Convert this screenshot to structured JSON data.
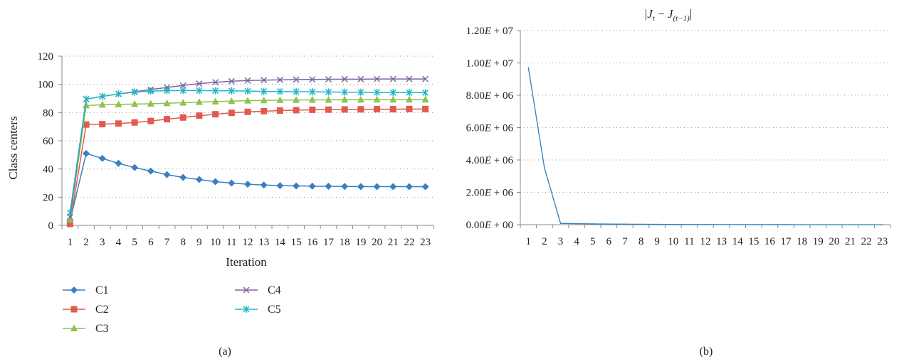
{
  "chart_data": [
    {
      "type": "line",
      "caption": "(a)",
      "ylabel": "Class centers",
      "xlabel": "Iteration",
      "ylim": [
        0,
        120
      ],
      "yticks": [
        "0",
        "20",
        "40",
        "60",
        "80",
        "100",
        "120"
      ],
      "categories": [
        "1",
        "2",
        "3",
        "4",
        "5",
        "6",
        "7",
        "8",
        "9",
        "10",
        "11",
        "12",
        "13",
        "14",
        "15",
        "16",
        "17",
        "18",
        "19",
        "20",
        "21",
        "22",
        "23"
      ],
      "grid": "horizontal dotted",
      "legend_position": "bottom, two columns",
      "series": [
        {
          "name": "C1",
          "color": "#3a7fc1",
          "marker": "diamond",
          "values": [
            3,
            51,
            47.5,
            44,
            41,
            38.5,
            36,
            34,
            32.5,
            31,
            30,
            29.2,
            28.6,
            28.2,
            28,
            27.8,
            27.7,
            27.6,
            27.5,
            27.5,
            27.5,
            27.5,
            27.4
          ]
        },
        {
          "name": "C2",
          "color": "#e05a4f",
          "marker": "square",
          "values": [
            1,
            71.5,
            71.8,
            72.2,
            73,
            74,
            75.3,
            76.5,
            77.8,
            78.8,
            79.8,
            80.5,
            81,
            81.4,
            81.7,
            82,
            82.1,
            82.2,
            82.3,
            82.4,
            82.4,
            82.5,
            82.5
          ]
        },
        {
          "name": "C3",
          "color": "#8cc34b",
          "marker": "triangle",
          "values": [
            4,
            85,
            85.5,
            85.8,
            86,
            86.2,
            86.6,
            87,
            87.4,
            87.8,
            88.1,
            88.4,
            88.6,
            88.8,
            88.9,
            89,
            89,
            89.1,
            89.1,
            89.2,
            89.2,
            89.2,
            89.2
          ]
        },
        {
          "name": "C4",
          "color": "#8064a2",
          "marker": "x",
          "values": [
            6,
            89.5,
            91.5,
            93.2,
            94.8,
            96.3,
            97.8,
            99.2,
            100.5,
            101.5,
            102.2,
            102.7,
            103,
            103.2,
            103.4,
            103.5,
            103.6,
            103.7,
            103.7,
            103.8,
            103.8,
            103.8,
            103.8
          ]
        },
        {
          "name": "C5",
          "color": "#22b5c9",
          "marker": "asterisk",
          "values": [
            9,
            89.5,
            91.5,
            93.2,
            94.5,
            95.2,
            95.5,
            95.6,
            95.6,
            95.5,
            95.4,
            95.2,
            95,
            94.9,
            94.8,
            94.7,
            94.6,
            94.5,
            94.4,
            94.3,
            94.2,
            94.2,
            94.1
          ]
        }
      ]
    },
    {
      "type": "line",
      "caption": "(b)",
      "title_parts": {
        "bar_open": "|",
        "J": "J",
        "t_sub": "t",
        "minus": " − ",
        "J2": "J",
        "t1_sub": "(t−1)",
        "bar_close": "|"
      },
      "ylim": [
        0,
        12000000
      ],
      "ytick_parts": [
        {
          "mantissa": "0.00",
          "E": "E",
          "rest": " + 00"
        },
        {
          "mantissa": "2.00",
          "E": "E",
          "rest": " + 06"
        },
        {
          "mantissa": "4.00",
          "E": "E",
          "rest": " + 06"
        },
        {
          "mantissa": "6.00",
          "E": "E",
          "rest": " + 06"
        },
        {
          "mantissa": "8.00",
          "E": "E",
          "rest": " + 06"
        },
        {
          "mantissa": "1.00",
          "E": "E",
          "rest": " + 07"
        },
        {
          "mantissa": "1.20",
          "E": "E",
          "rest": " + 07"
        }
      ],
      "categories": [
        "1",
        "2",
        "3",
        "4",
        "5",
        "6",
        "7",
        "8",
        "9",
        "10",
        "11",
        "12",
        "13",
        "14",
        "15",
        "16",
        "17",
        "18",
        "19",
        "20",
        "21",
        "22",
        "23"
      ],
      "grid": "horizontal dotted",
      "series": [
        {
          "color": "#2a7fbf",
          "values": [
            9700000,
            3500000,
            80000,
            60000,
            50000,
            40000,
            32000,
            25000,
            20000,
            15000,
            11000,
            8000,
            6000,
            4500,
            3500,
            2600,
            2000,
            1500,
            1100,
            800,
            600,
            400,
            300
          ]
        }
      ]
    }
  ]
}
